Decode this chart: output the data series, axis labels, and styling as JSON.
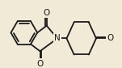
{
  "bg_color": "#f0ead6",
  "bond_color": "#1a1a1a",
  "bond_lw": 1.3,
  "figsize": [
    1.51,
    0.84
  ],
  "dpi": 100,
  "N_label": "N",
  "O_label": "O",
  "font_size": 7.5
}
